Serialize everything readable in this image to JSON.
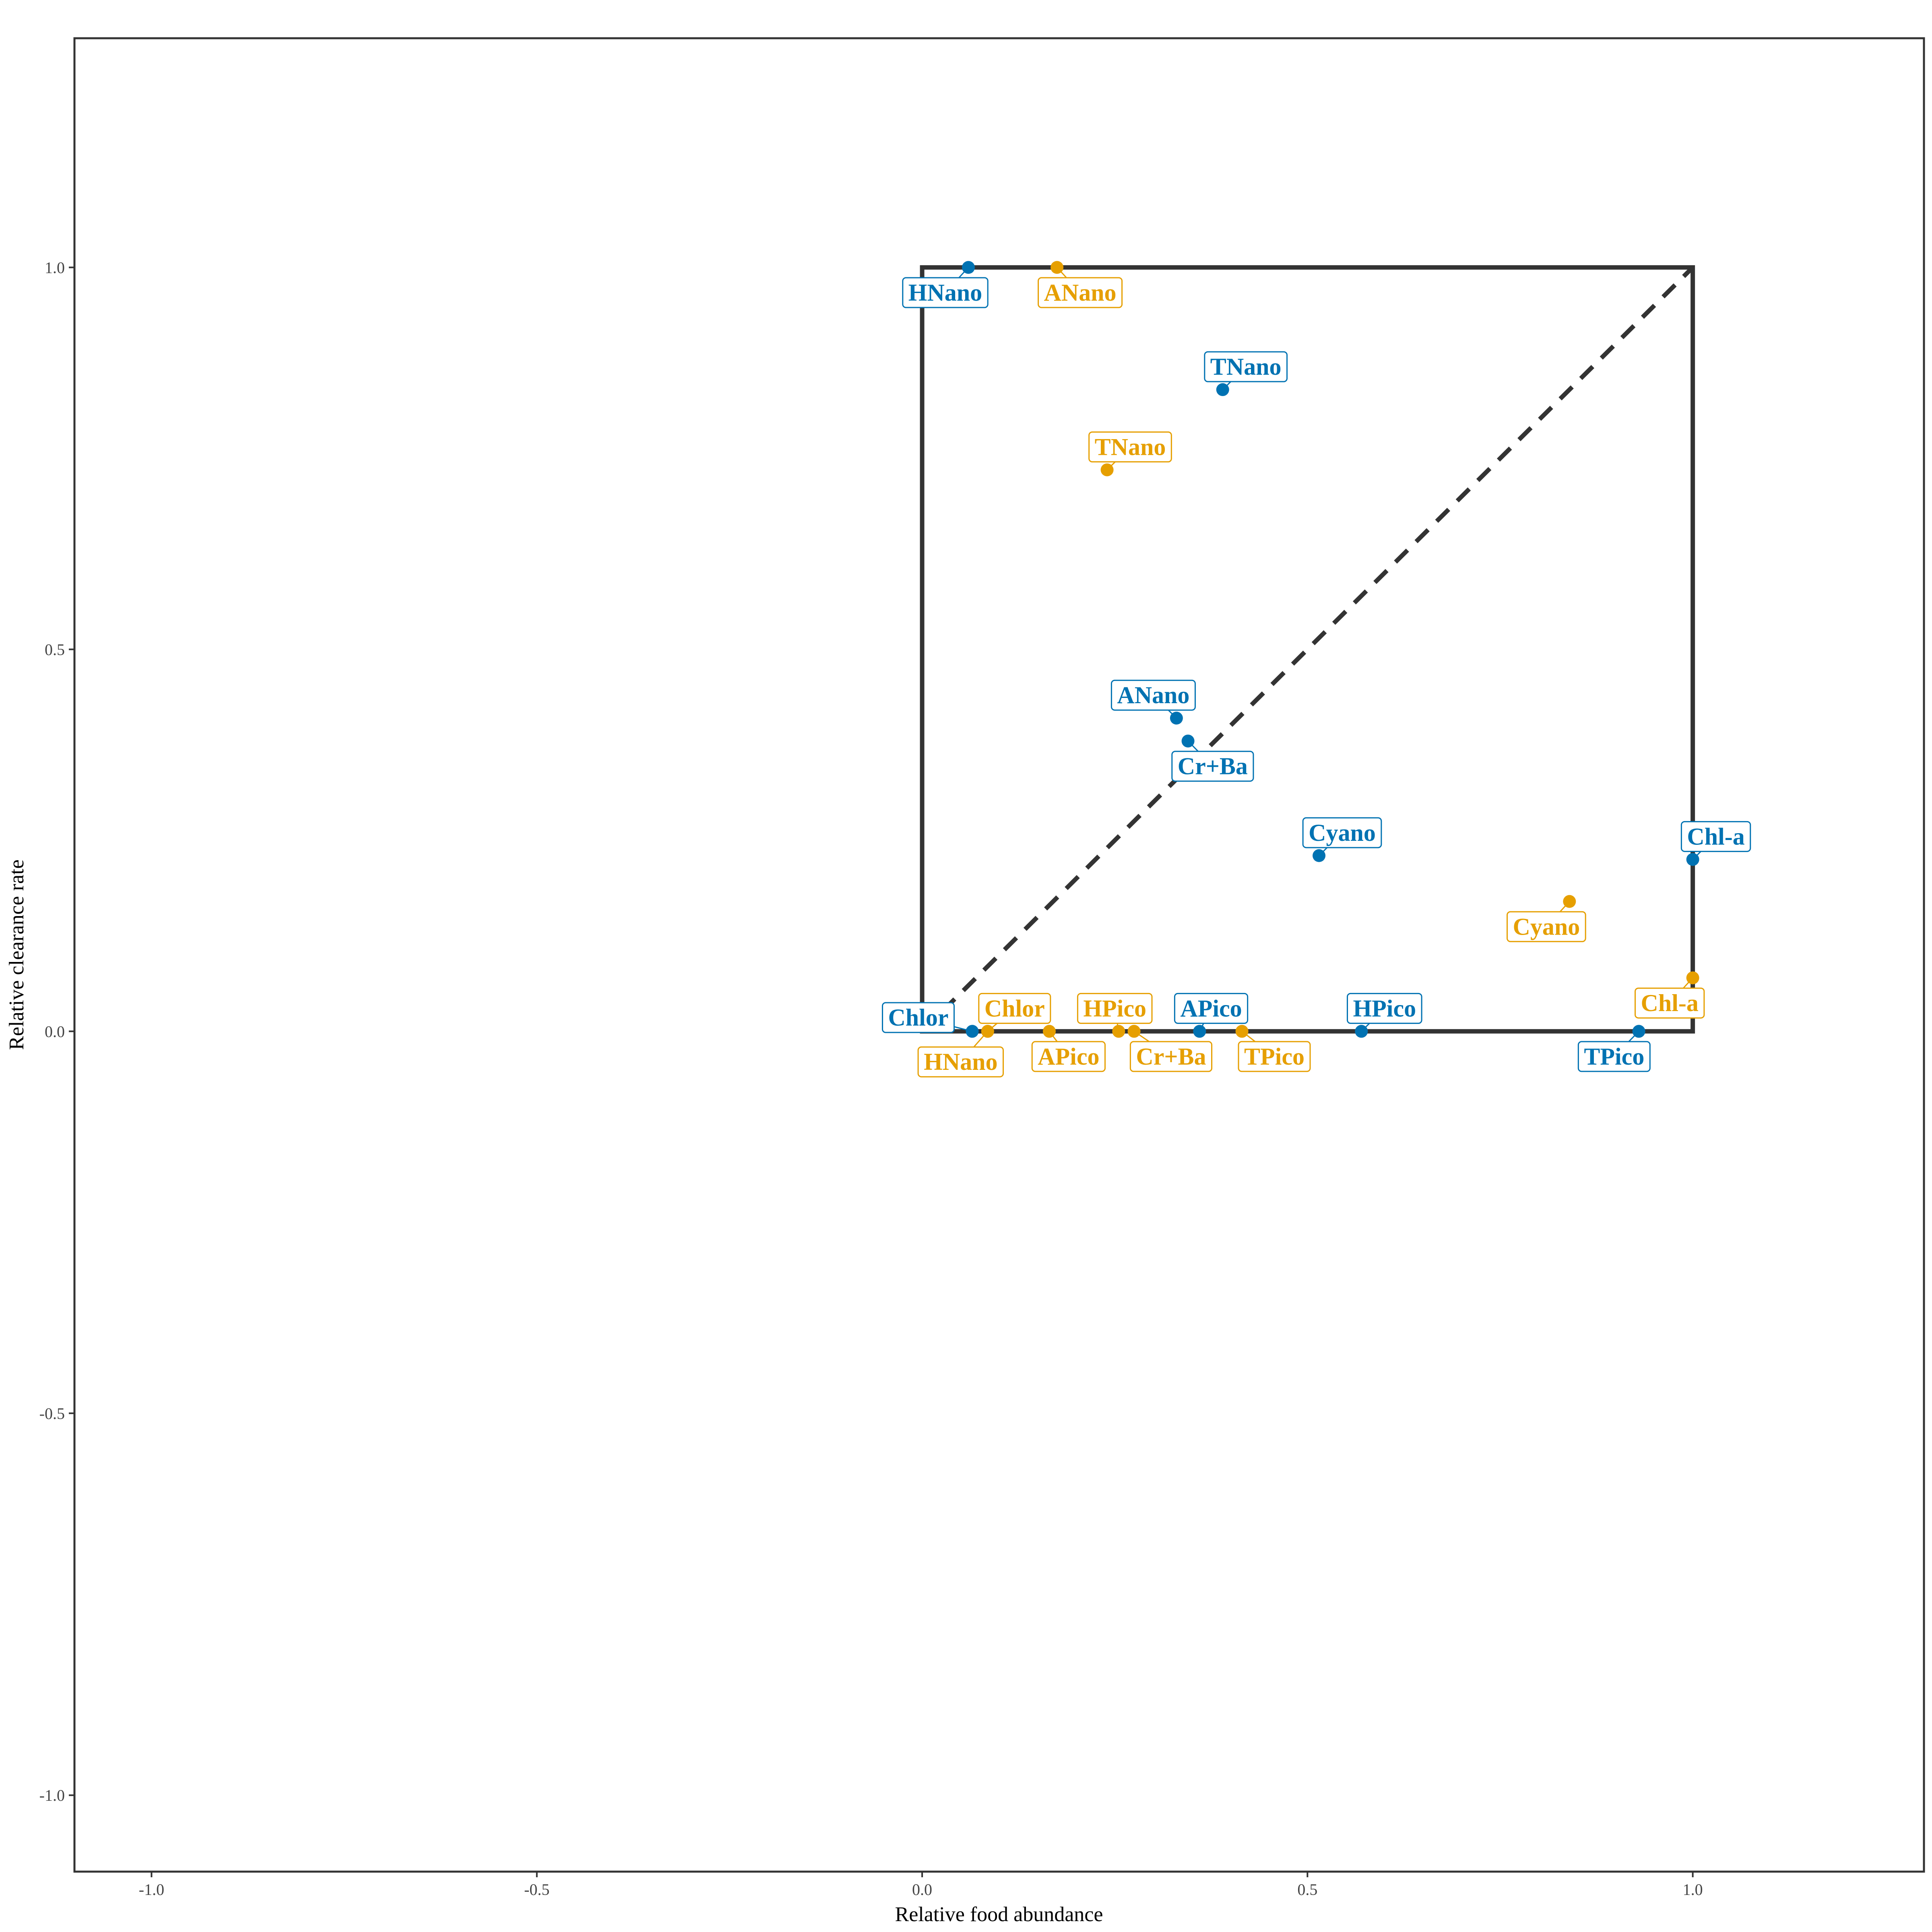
{
  "chart_data": {
    "type": "scatter",
    "xlabel": "Relative food abundance",
    "ylabel": "Relative clearance rate",
    "xlim": [
      -1.1,
      1.3
    ],
    "ylim": [
      -1.1,
      1.3
    ],
    "xticks": [
      "-1.0",
      "-0.5",
      "0.0",
      "0.5",
      "1.0"
    ],
    "yticks": [
      "-1.0",
      "-0.5",
      "0.0",
      "0.5",
      "1.0"
    ],
    "grid": false,
    "reference_box": {
      "x": [
        0,
        1
      ],
      "y": [
        0,
        1
      ]
    },
    "reference_line": {
      "from": [
        0,
        0
      ],
      "to": [
        1,
        1
      ],
      "style": "dashed"
    },
    "colors": {
      "blue": "#0072B2",
      "orange": "#E69F00",
      "frame": "#333333"
    },
    "series": [
      {
        "color": "blue",
        "points": [
          {
            "label": "HNano",
            "x": 0.06,
            "y": 1.0,
            "dx": -0.03,
            "dy": -0.033
          },
          {
            "label": "TNano",
            "x": 0.39,
            "y": 0.84,
            "dx": 0.03,
            "dy": 0.03
          },
          {
            "label": "ANano",
            "x": 0.33,
            "y": 0.41,
            "dx": -0.03,
            "dy": 0.03
          },
          {
            "label": "Cr+Ba",
            "x": 0.345,
            "y": 0.38,
            "dx": 0.032,
            "dy": -0.033
          },
          {
            "label": "Cyano",
            "x": 0.515,
            "y": 0.23,
            "dx": 0.03,
            "dy": 0.03
          },
          {
            "label": "Chl-a",
            "x": 1.0,
            "y": 0.225,
            "dx": 0.03,
            "dy": 0.03
          },
          {
            "label": "Chlor",
            "x": 0.065,
            "y": 0.0,
            "dx": -0.07,
            "dy": 0.018
          },
          {
            "label": "APico",
            "x": 0.36,
            "y": 0.0,
            "dx": 0.015,
            "dy": 0.03
          },
          {
            "label": "HPico",
            "x": 0.57,
            "y": 0.0,
            "dx": 0.03,
            "dy": 0.03
          },
          {
            "label": "TPico",
            "x": 0.93,
            "y": 0.0,
            "dx": -0.032,
            "dy": -0.033
          }
        ]
      },
      {
        "color": "orange",
        "points": [
          {
            "label": "ANano",
            "x": 0.175,
            "y": 1.0,
            "dx": 0.03,
            "dy": -0.033
          },
          {
            "label": "TNano",
            "x": 0.24,
            "y": 0.735,
            "dx": 0.03,
            "dy": 0.03
          },
          {
            "label": "Cyano",
            "x": 0.84,
            "y": 0.17,
            "dx": -0.03,
            "dy": -0.033
          },
          {
            "label": "Chl-a",
            "x": 1.0,
            "y": 0.07,
            "dx": -0.03,
            "dy": -0.033
          },
          {
            "label": "Chlor",
            "x": 0.085,
            "y": 0.0,
            "dx": 0.035,
            "dy": 0.03
          },
          {
            "label": "HNano",
            "x": 0.085,
            "y": 0.0,
            "dx": -0.035,
            "dy": -0.04
          },
          {
            "label": "APico",
            "x": 0.165,
            "y": 0.0,
            "dx": 0.025,
            "dy": -0.033
          },
          {
            "label": "HPico",
            "x": 0.255,
            "y": 0.0,
            "dx": -0.005,
            "dy": 0.03
          },
          {
            "label": "Cr+Ba",
            "x": 0.275,
            "y": 0.0,
            "dx": 0.048,
            "dy": -0.033
          },
          {
            "label": "TPico",
            "x": 0.415,
            "y": 0.0,
            "dx": 0.042,
            "dy": -0.033
          }
        ]
      }
    ]
  }
}
